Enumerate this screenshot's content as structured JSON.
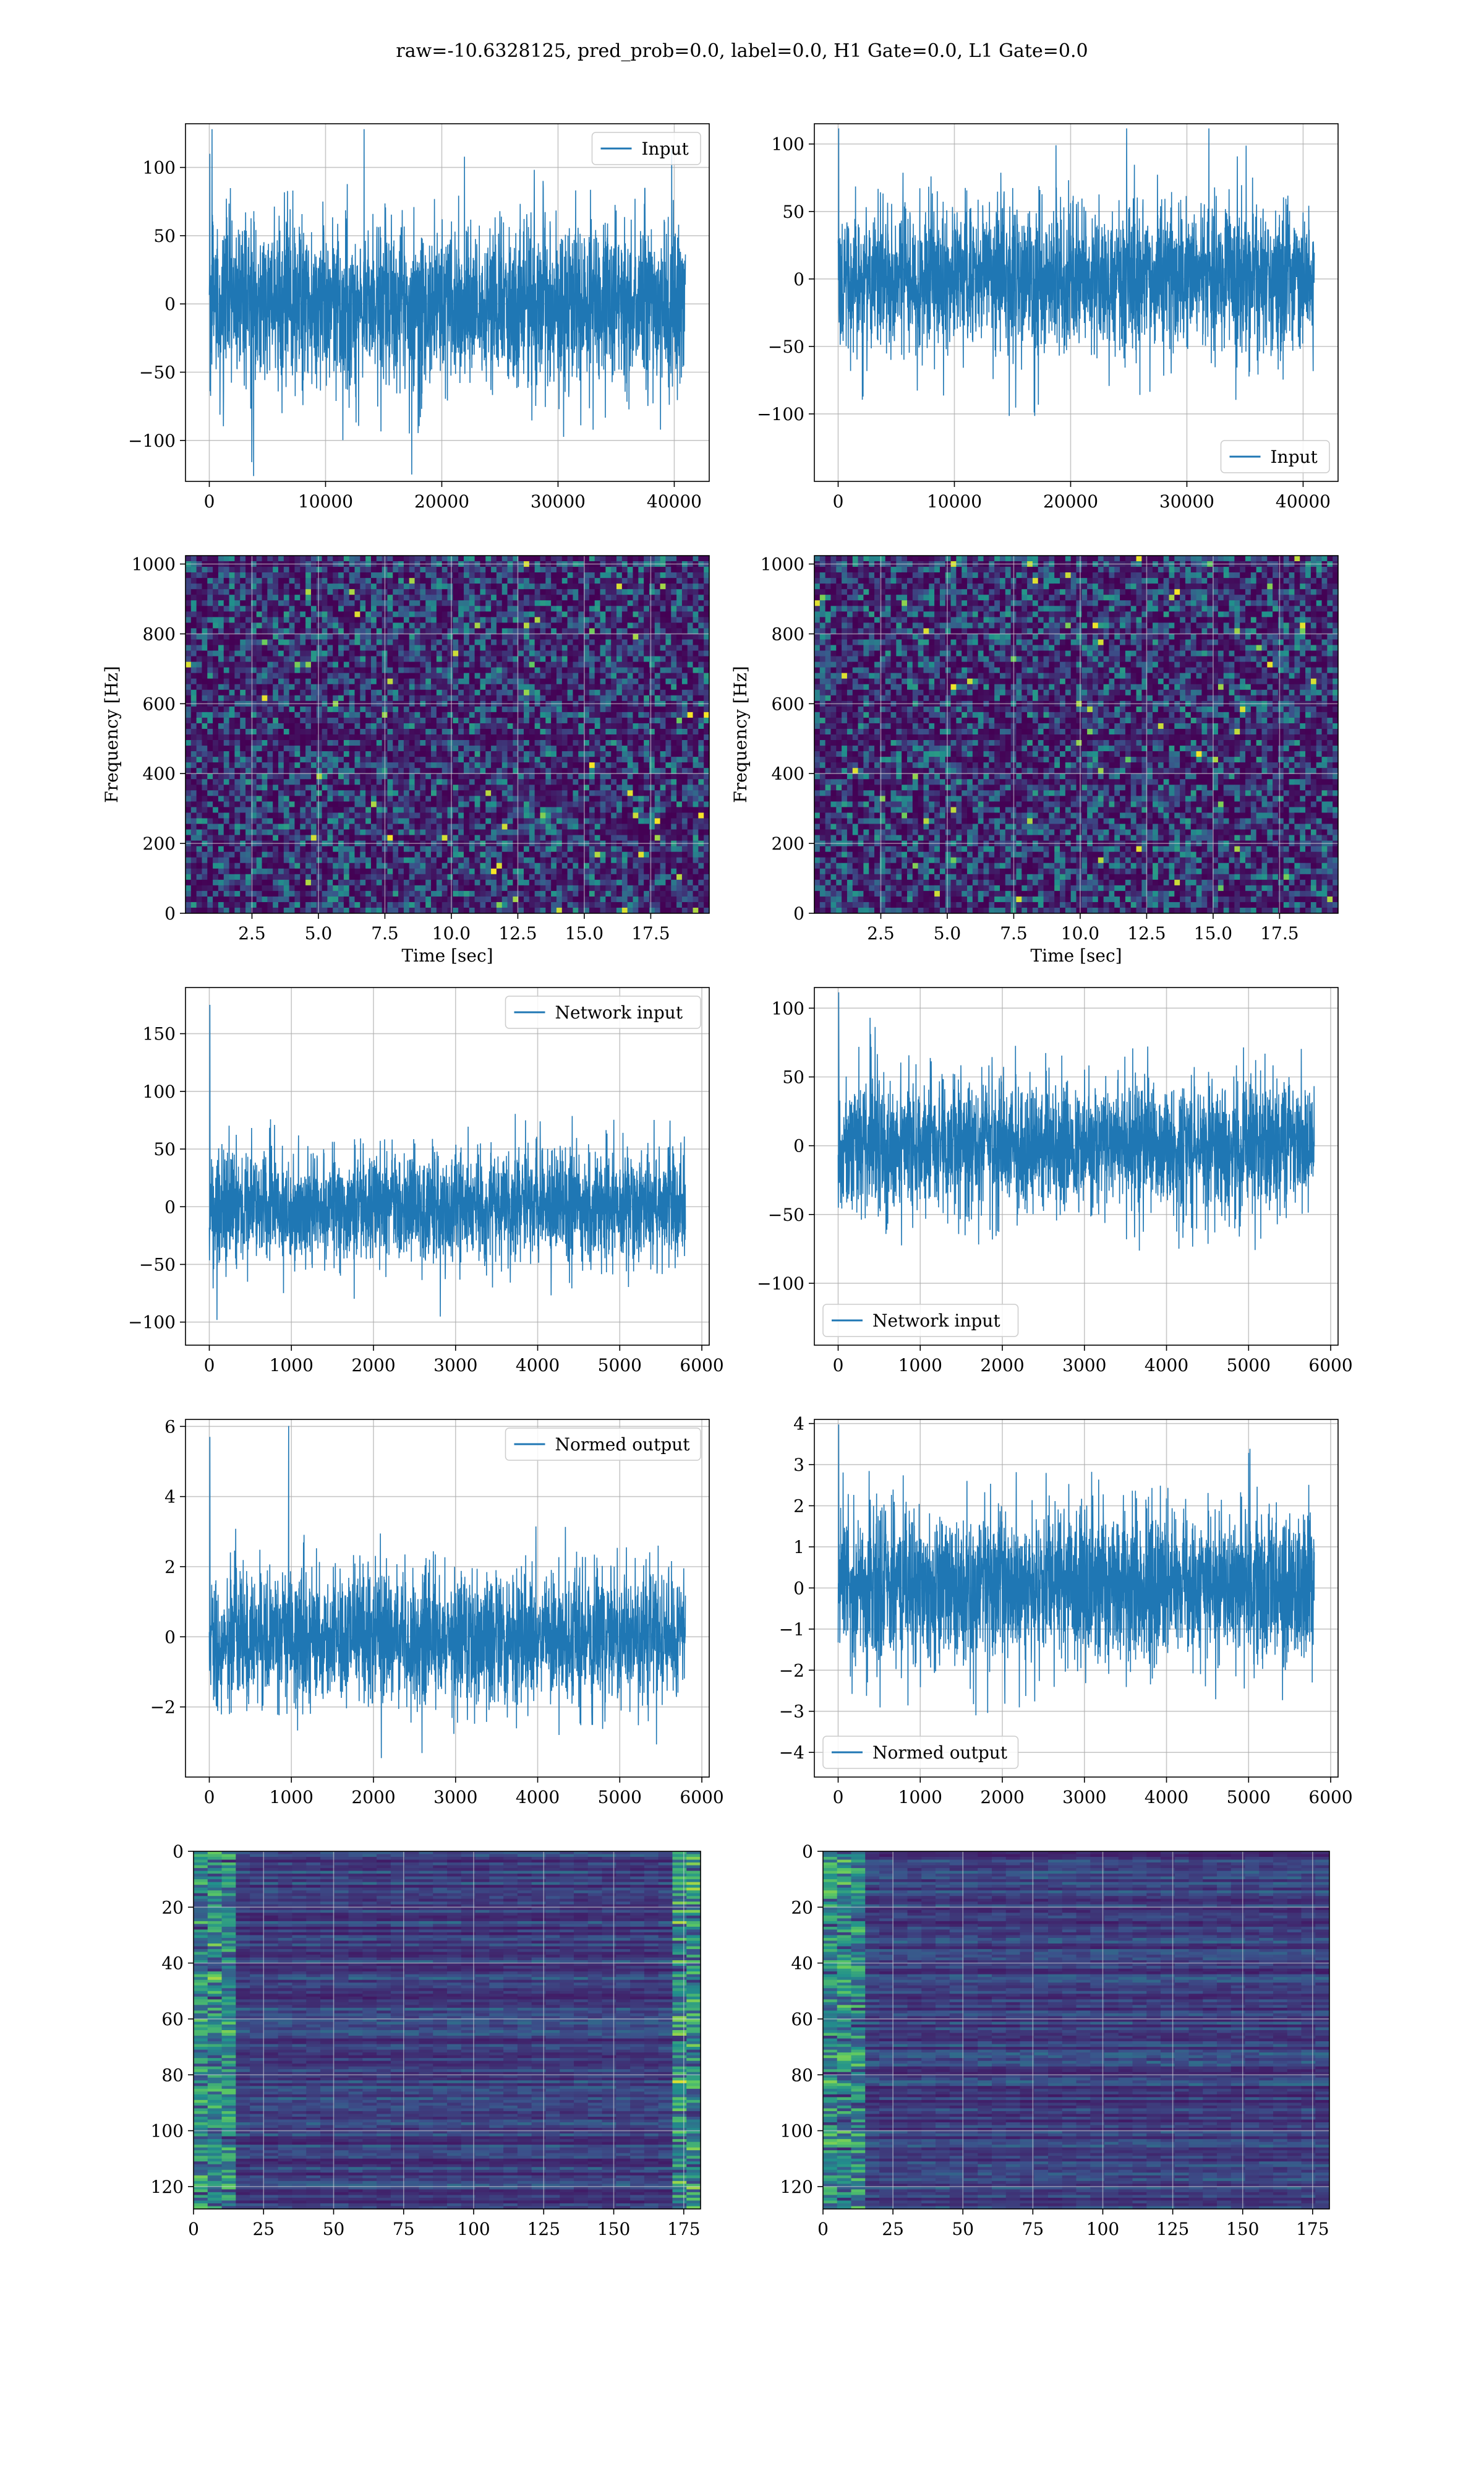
{
  "suptitle": "raw=-10.6328125, pred_prob=0.0, label=0.0, H1 Gate=0.0, L1 Gate=0.0",
  "colors": {
    "line": "#1f77b4",
    "grid": "#b0b0b0",
    "cmap": [
      "#440154",
      "#3b528b",
      "#21918c",
      "#5ec962",
      "#fde725"
    ]
  },
  "chart_data": [
    {
      "id": "input-h1",
      "type": "line",
      "series": [
        {
          "name": "Input",
          "kind": "noise",
          "n": 40960,
          "sigma": 30,
          "peak": 110
        }
      ],
      "xlim": [
        -2048,
        43008
      ],
      "ylim": [
        -130,
        132
      ],
      "xticks": [
        0,
        10000,
        20000,
        30000,
        40000
      ],
      "yticks": [
        -100,
        -50,
        0,
        50,
        100
      ],
      "legend": "top-right",
      "grid": true,
      "xlabel": "",
      "ylabel": ""
    },
    {
      "id": "input-l1",
      "type": "line",
      "series": [
        {
          "name": "Input",
          "kind": "noise",
          "n": 40960,
          "sigma": 27,
          "peak": 120
        }
      ],
      "xlim": [
        -2048,
        43008
      ],
      "ylim": [
        -150,
        115
      ],
      "xticks": [
        0,
        10000,
        20000,
        30000,
        40000
      ],
      "yticks": [
        -100,
        -50,
        0,
        50,
        100
      ],
      "legend": "bottom-right",
      "grid": true,
      "xlabel": "",
      "ylabel": ""
    },
    {
      "id": "spec-h1",
      "type": "heatmap",
      "xlabel": "Time [sec]",
      "ylabel": "Frequency [Hz]",
      "xlim": [
        0,
        19.7
      ],
      "ylim": [
        0,
        1024
      ],
      "xticks": [
        2.5,
        5.0,
        7.5,
        10.0,
        12.5,
        15.0,
        17.5
      ],
      "yticks": [
        0,
        200,
        400,
        600,
        800,
        1000
      ],
      "grid": true
    },
    {
      "id": "spec-l1",
      "type": "heatmap",
      "xlabel": "Time [sec]",
      "ylabel": "Frequency [Hz]",
      "xlim": [
        0,
        19.7
      ],
      "ylim": [
        0,
        1024
      ],
      "xticks": [
        2.5,
        5.0,
        7.5,
        10.0,
        12.5,
        15.0,
        17.5
      ],
      "yticks": [
        0,
        200,
        400,
        600,
        800,
        1000
      ],
      "grid": true
    },
    {
      "id": "net-h1",
      "type": "line",
      "series": [
        {
          "name": "Network input",
          "kind": "noise",
          "n": 5800,
          "sigma": 24,
          "peak": 175
        }
      ],
      "xlim": [
        -290,
        6090
      ],
      "ylim": [
        -120,
        190
      ],
      "xticks": [
        0,
        1000,
        2000,
        3000,
        4000,
        5000,
        6000
      ],
      "yticks": [
        -100,
        -50,
        0,
        50,
        100,
        150
      ],
      "legend": "top-right",
      "grid": true,
      "xlabel": "",
      "ylabel": ""
    },
    {
      "id": "net-l1",
      "type": "line",
      "series": [
        {
          "name": "Network input",
          "kind": "noise",
          "n": 5800,
          "sigma": 24,
          "peak": 130
        }
      ],
      "xlim": [
        -290,
        6090
      ],
      "ylim": [
        -145,
        115
      ],
      "xticks": [
        0,
        1000,
        2000,
        3000,
        4000,
        5000,
        6000
      ],
      "yticks": [
        -100,
        -50,
        0,
        50,
        100
      ],
      "legend": "bottom-left",
      "grid": true,
      "xlabel": "",
      "ylabel": ""
    },
    {
      "id": "norm-h1",
      "type": "line",
      "series": [
        {
          "name": "Normed output",
          "kind": "noise",
          "n": 5800,
          "sigma": 0.95,
          "peak": 5.7
        }
      ],
      "xlim": [
        -290,
        6090
      ],
      "ylim": [
        -4,
        6.2
      ],
      "xticks": [
        0,
        1000,
        2000,
        3000,
        4000,
        5000,
        6000
      ],
      "yticks": [
        -2,
        0,
        2,
        4,
        6
      ],
      "legend": "top-right",
      "grid": true,
      "xlabel": "",
      "ylabel": ""
    },
    {
      "id": "norm-l1",
      "type": "line",
      "series": [
        {
          "name": "Normed output",
          "kind": "noise",
          "n": 5800,
          "sigma": 0.95,
          "peak": 4.2
        }
      ],
      "xlim": [
        -290,
        6090
      ],
      "ylim": [
        -4.6,
        4.1
      ],
      "xticks": [
        0,
        1000,
        2000,
        3000,
        4000,
        5000,
        6000
      ],
      "yticks": [
        -4,
        -3,
        -2,
        -1,
        0,
        1,
        2,
        3,
        4
      ],
      "legend": "bottom-left",
      "grid": true,
      "xlabel": "",
      "ylabel": ""
    },
    {
      "id": "feat-h1",
      "type": "heatmap",
      "xlim": [
        0,
        181
      ],
      "ylim": [
        128,
        0
      ],
      "xticks": [
        0,
        25,
        50,
        75,
        100,
        125,
        150,
        175
      ],
      "yticks": [
        0,
        20,
        40,
        60,
        80,
        100,
        120
      ],
      "grid": true,
      "xlabel": "",
      "ylabel": ""
    },
    {
      "id": "feat-l1",
      "type": "heatmap",
      "xlim": [
        0,
        181
      ],
      "ylim": [
        128,
        0
      ],
      "xticks": [
        0,
        25,
        50,
        75,
        100,
        125,
        150,
        175
      ],
      "yticks": [
        0,
        20,
        40,
        60,
        80,
        100,
        120
      ],
      "grid": true,
      "xlabel": "",
      "ylabel": ""
    }
  ]
}
